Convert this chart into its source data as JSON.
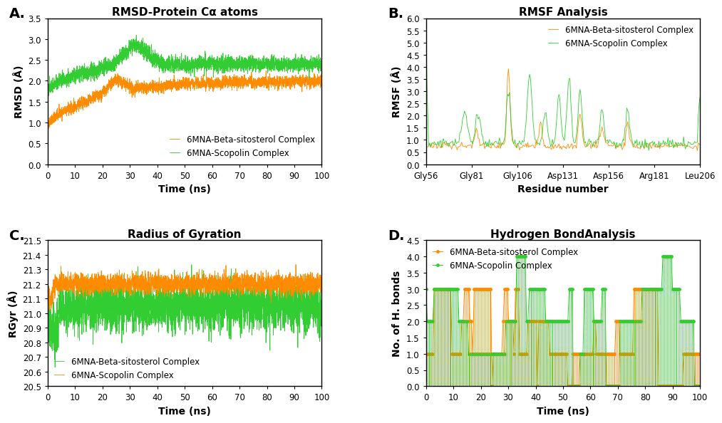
{
  "panel_A": {
    "title": "RMSD-Protein Cα atoms",
    "xlabel": "Time (ns)",
    "ylabel": "RMSD (Å)",
    "ylim": [
      0,
      3.5
    ],
    "yticks": [
      0,
      0.5,
      1.0,
      1.5,
      2.0,
      2.5,
      3.0,
      3.5
    ],
    "xlim": [
      0,
      100
    ],
    "xticks": [
      0,
      10,
      20,
      30,
      40,
      50,
      60,
      70,
      80,
      90,
      100
    ],
    "legend1": "6MNA-Beta-sitosterol Complex",
    "legend2": "6MNA-Scopolin Complex",
    "color1": "#FF8C00",
    "color2": "#32CD32"
  },
  "panel_B": {
    "title": "RMSF Analysis",
    "xlabel": "Residue number",
    "ylabel": "RMSF (Å)",
    "ylim": [
      0,
      6
    ],
    "yticks": [
      0,
      0.5,
      1.0,
      1.5,
      2.0,
      2.5,
      3.0,
      3.5,
      4.0,
      4.5,
      5.0,
      5.5,
      6.0
    ],
    "xtick_labels": [
      "Gly56",
      "Gly81",
      "Gly106",
      "Asp131",
      "Asp156",
      "Arg181",
      "Leu206"
    ],
    "legend1": "6MNA-Beta-sitosterol Complex",
    "legend2": "6MNA-Scopolin Complex",
    "color1": "#FF8C00",
    "color2": "#32CD32"
  },
  "panel_C": {
    "title": "Radius of Gyration",
    "xlabel": "Time (ns)",
    "ylabel": "RGyr (Å)",
    "ylim": [
      20.5,
      21.5
    ],
    "yticks": [
      20.5,
      20.6,
      20.7,
      20.8,
      20.9,
      21.0,
      21.1,
      21.2,
      21.3,
      21.4,
      21.5
    ],
    "xlim": [
      0,
      100
    ],
    "xticks": [
      0,
      10,
      20,
      30,
      40,
      50,
      60,
      70,
      80,
      90,
      100
    ],
    "legend1": "6MNA-Beta-sitosterol Complex",
    "legend2": "6MNA-Scopolin Complex",
    "color_green": "#32CD32",
    "color_orange": "#FF8C00"
  },
  "panel_D": {
    "title": "Hydrogen BondAnalysis",
    "xlabel": "Time (ns)",
    "ylabel": "No. of H. bonds",
    "ylim": [
      0,
      4.5
    ],
    "yticks": [
      0,
      0.5,
      1.0,
      1.5,
      2.0,
      2.5,
      3.0,
      3.5,
      4.0,
      4.5
    ],
    "xlim": [
      0,
      100
    ],
    "xticks": [
      0,
      10,
      20,
      30,
      40,
      50,
      60,
      70,
      80,
      90,
      100
    ],
    "legend1": "6MNA-Beta-sitosterol Complex",
    "legend2": "6MNA-Scopolin Complex",
    "color1": "#FF8C00",
    "color2": "#32CD32"
  },
  "label_fontsize": 10,
  "title_fontsize": 11,
  "tick_fontsize": 8.5,
  "legend_fontsize": 8.5,
  "line_width": 0.6,
  "background_color": "#ffffff",
  "panel_label_fontsize": 14,
  "panel_labels": [
    "A.",
    "B.",
    "C.",
    "D."
  ]
}
